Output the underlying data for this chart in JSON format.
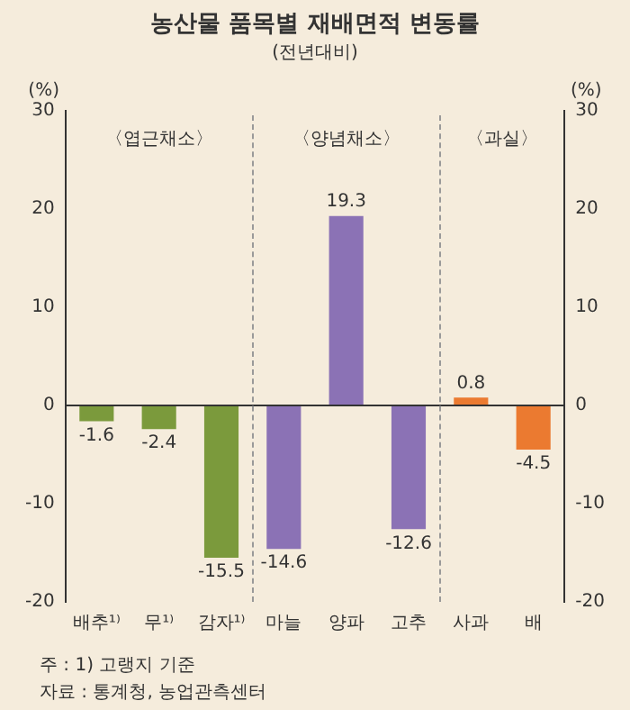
{
  "chart_data": {
    "type": "bar",
    "title": "농산물 품목별 재배면적 변동률",
    "subtitle": "(전년대비)",
    "ylabel": "(%)",
    "y2label": "(%)",
    "categories": [
      "배추¹⁾",
      "무¹⁾",
      "감자¹⁾",
      "마늘",
      "양파",
      "고추",
      "사과",
      "배"
    ],
    "values": [
      -1.6,
      -2.4,
      -15.5,
      -14.6,
      19.3,
      -12.6,
      0.8,
      -4.5
    ],
    "colors": [
      "#7b9a3c",
      "#7b9a3c",
      "#7b9a3c",
      "#8b72b5",
      "#8b72b5",
      "#8b72b5",
      "#eb7a30",
      "#eb7a30"
    ],
    "ylim": [
      -20,
      30
    ],
    "yticks": [
      -20,
      -10,
      0,
      10,
      20,
      30
    ],
    "y2lim": [
      -20,
      30
    ],
    "y2ticks": [
      -20,
      -10,
      0,
      10,
      20,
      30
    ],
    "grid": false,
    "legend": false,
    "data_labels": true,
    "ref_lines": [
      {
        "axis": "y",
        "value": 0,
        "color": "#333333"
      }
    ],
    "annotations": [
      "〈엽근채소〉",
      "〈양념채소〉",
      "〈과실〉",
      "주 : 1) 고랭지 기준",
      "자료 : 통계청, 농업관측센터"
    ]
  }
}
